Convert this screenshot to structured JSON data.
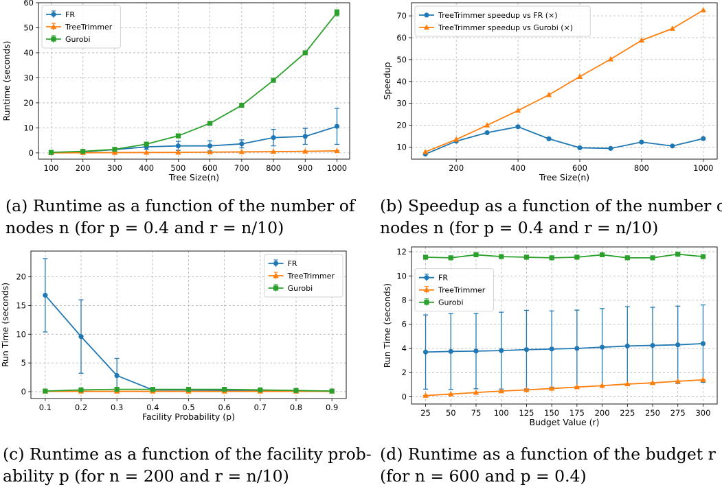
{
  "colors": {
    "fr": "#1f77b4",
    "treetrimmer": "#ff7f0e",
    "gurobi": "#2ca02c",
    "grid": "#b0b0b0"
  },
  "captions": [
    {
      "line1": "(a) Runtime as a function of the number of",
      "line2": "nodes n (for p = 0.4 and r = n/10)"
    },
    {
      "line1": "(b) Speedup as a function of the number of",
      "line2": "nodes n (for p = 0.4 and r = n/10)"
    },
    {
      "line1": "(c) Runtime as a function of the facility prob-",
      "line2": "ability p (for n = 200 and r = n/10)"
    },
    {
      "line1": "(d) Runtime as a function of the budget r",
      "line2": "(for n = 600 and p = 0.4)"
    }
  ],
  "chart_data": [
    {
      "type": "line",
      "xlabel": "Tree Size(n)",
      "ylabel": "Runtime (seconds)",
      "xlim": [
        60,
        1040
      ],
      "ylim": [
        -2.5,
        60
      ],
      "xticks": [
        100,
        200,
        300,
        400,
        500,
        600,
        700,
        800,
        900,
        1000
      ],
      "yticks": [
        0,
        10,
        20,
        30,
        40,
        50,
        60
      ],
      "grid": true,
      "legend": "top-left",
      "x": [
        100,
        200,
        300,
        400,
        500,
        600,
        700,
        800,
        900,
        1000
      ],
      "series": [
        {
          "name": "FR",
          "marker": "circle",
          "values": [
            0.1,
            0.4,
            1.3,
            2.4,
            2.8,
            2.8,
            3.6,
            6.1,
            6.6,
            10.6
          ],
          "err": [
            0.2,
            0.4,
            0.6,
            1.0,
            1.8,
            2.0,
            1.6,
            3.3,
            3.2,
            7.2
          ]
        },
        {
          "name": "TreeTrimmer",
          "marker": "triangle",
          "values": [
            0.0,
            0.05,
            0.1,
            0.15,
            0.2,
            0.3,
            0.4,
            0.5,
            0.6,
            0.8
          ],
          "err": [
            0.02,
            0.03,
            0.05,
            0.05,
            0.05,
            0.05,
            0.05,
            0.1,
            0.1,
            0.1
          ]
        },
        {
          "name": "Gurobi",
          "marker": "square",
          "values": [
            0.2,
            0.6,
            1.4,
            3.5,
            6.8,
            11.8,
            19.0,
            29.0,
            40.0,
            56.0
          ],
          "err": [
            0.1,
            0.1,
            0.2,
            0.3,
            0.5,
            0.5,
            0.5,
            0.5,
            0.6,
            1.2
          ]
        }
      ]
    },
    {
      "type": "line",
      "xlabel": "Tree Size(n)",
      "ylabel": "Speedup",
      "xlim": [
        55,
        1045
      ],
      "ylim": [
        4.5,
        76
      ],
      "xticks": [
        200,
        400,
        600,
        800,
        1000
      ],
      "yticks": [
        10,
        20,
        30,
        40,
        50,
        60,
        70
      ],
      "grid": true,
      "legend": "top-left",
      "x": [
        100,
        200,
        300,
        400,
        500,
        600,
        700,
        800,
        900,
        1000
      ],
      "series": [
        {
          "name": "TreeTrimmer speedup vs FR (×)",
          "marker": "circle",
          "values": [
            6.8,
            12.7,
            16.6,
            19.3,
            13.8,
            9.7,
            9.4,
            12.3,
            10.5,
            13.9
          ]
        },
        {
          "name": "TreeTrimmer speedup vs Gurobi (×)",
          "marker": "triangle",
          "values": [
            7.8,
            13.5,
            20.0,
            26.7,
            33.9,
            42.2,
            50.2,
            58.8,
            64.2,
            72.6
          ]
        }
      ]
    },
    {
      "type": "line",
      "xlabel": "Facility Probability (p)",
      "ylabel": "Run Time (seconds)",
      "xlim": [
        0.06,
        0.94
      ],
      "ylim": [
        -1.2,
        24.5
      ],
      "xticks": [
        0.1,
        0.2,
        0.3,
        0.4,
        0.5,
        0.6,
        0.7,
        0.8,
        0.9
      ],
      "yticks": [
        0,
        5,
        10,
        15,
        20
      ],
      "grid": true,
      "legend": "top-right",
      "x": [
        0.1,
        0.2,
        0.3,
        0.4,
        0.5,
        0.6,
        0.7,
        0.8,
        0.9
      ],
      "series": [
        {
          "name": "FR",
          "marker": "circle",
          "values": [
            16.8,
            9.6,
            2.8,
            0.3,
            0.3,
            0.2,
            0.2,
            0.1,
            0.1
          ],
          "err": [
            6.4,
            6.4,
            3.0,
            0.2,
            0.1,
            0.1,
            0.1,
            0.05,
            0.05
          ]
        },
        {
          "name": "TreeTrimmer",
          "marker": "triangle",
          "values": [
            0.05,
            0.05,
            0.05,
            0.05,
            0.05,
            0.05,
            0.05,
            0.05,
            0.05
          ],
          "err": [
            0.02,
            0.02,
            0.02,
            0.02,
            0.02,
            0.02,
            0.02,
            0.02,
            0.02
          ]
        },
        {
          "name": "Gurobi",
          "marker": "square",
          "values": [
            0.1,
            0.3,
            0.4,
            0.4,
            0.4,
            0.4,
            0.3,
            0.2,
            0.1
          ],
          "err": [
            0.05,
            0.05,
            0.05,
            0.05,
            0.05,
            0.05,
            0.05,
            0.05,
            0.05
          ]
        }
      ]
    },
    {
      "type": "line",
      "xlabel": "Budget Value (r)",
      "ylabel": "Run Time (seconds)",
      "xlim": [
        11,
        314
      ],
      "ylim": [
        -0.6,
        12.4
      ],
      "xticks": [
        25,
        50,
        75,
        100,
        125,
        150,
        175,
        200,
        225,
        250,
        275,
        300
      ],
      "yticks": [
        0,
        2,
        4,
        6,
        8,
        10,
        12
      ],
      "grid": true,
      "legend": "upper-left",
      "x": [
        25,
        50,
        75,
        100,
        125,
        150,
        175,
        200,
        225,
        250,
        275,
        300
      ],
      "series": [
        {
          "name": "FR",
          "marker": "circle",
          "values": [
            3.7,
            3.75,
            3.78,
            3.82,
            3.9,
            3.95,
            4.0,
            4.1,
            4.2,
            4.25,
            4.3,
            4.4
          ],
          "err": [
            3.07,
            3.15,
            3.12,
            3.18,
            3.25,
            3.15,
            3.17,
            3.2,
            3.25,
            3.15,
            3.2,
            3.2
          ]
        },
        {
          "name": "TreeTrimmer",
          "marker": "triangle",
          "values": [
            0.1,
            0.22,
            0.35,
            0.47,
            0.57,
            0.68,
            0.8,
            0.92,
            1.05,
            1.15,
            1.28,
            1.4
          ],
          "err": [
            0.02,
            0.02,
            0.02,
            0.02,
            0.02,
            0.02,
            0.02,
            0.02,
            0.02,
            0.02,
            0.02,
            0.02
          ]
        },
        {
          "name": "Gurobi",
          "marker": "square",
          "values": [
            11.55,
            11.5,
            11.75,
            11.6,
            11.55,
            11.5,
            11.55,
            11.75,
            11.5,
            11.5,
            11.8,
            11.6
          ],
          "err": [
            0.08,
            0.08,
            0.08,
            0.08,
            0.08,
            0.08,
            0.08,
            0.08,
            0.08,
            0.08,
            0.08,
            0.08
          ]
        }
      ]
    }
  ]
}
